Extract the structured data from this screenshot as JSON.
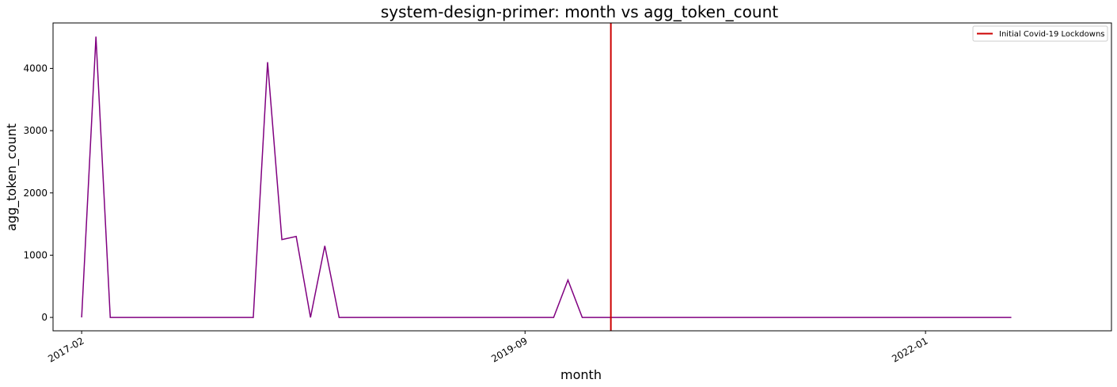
{
  "chart_data": {
    "type": "line",
    "title": "system-design-primer: month vs agg_token_count",
    "xlabel": "month",
    "ylabel": "agg_token_count",
    "x_ticks": [
      "2017-02",
      "2019-09",
      "2022-01"
    ],
    "y_ticks": [
      0,
      1000,
      2000,
      3000,
      4000
    ],
    "ylim": [
      -215,
      4730
    ],
    "xlim": [
      "2016-12",
      "2023-02"
    ],
    "grid": false,
    "legend_position": "top-right",
    "colors": {
      "series": "#800080",
      "marker_line": "#cc0000"
    },
    "series": [
      {
        "x": [
          "2017-02",
          "2017-03",
          "2017-04",
          "2017-05",
          "2017-06",
          "2017-07",
          "2017-08",
          "2017-09",
          "2017-10",
          "2017-11",
          "2017-12",
          "2018-01",
          "2018-02",
          "2018-03",
          "2018-04",
          "2018-05",
          "2018-06",
          "2018-07",
          "2018-08",
          "2018-09",
          "2018-10",
          "2018-11",
          "2018-12",
          "2019-01",
          "2019-02",
          "2019-03",
          "2019-04",
          "2019-05",
          "2019-06",
          "2019-07",
          "2019-08",
          "2019-09",
          "2019-10",
          "2019-11",
          "2019-12",
          "2020-01",
          "2020-02",
          "2020-03",
          "2020-04",
          "2020-05",
          "2020-06",
          "2020-07",
          "2020-08",
          "2020-09",
          "2020-10",
          "2020-11",
          "2020-12",
          "2021-01",
          "2021-02",
          "2021-03",
          "2021-04",
          "2021-05",
          "2021-06",
          "2021-07",
          "2021-08",
          "2021-09",
          "2021-10",
          "2021-11",
          "2021-12",
          "2022-01",
          "2022-02",
          "2022-03",
          "2022-04",
          "2022-05",
          "2022-06",
          "2022-07"
        ],
        "values": [
          0,
          4510,
          0,
          0,
          0,
          0,
          0,
          0,
          0,
          0,
          0,
          0,
          0,
          4100,
          1250,
          1300,
          0,
          1150,
          0,
          0,
          0,
          0,
          0,
          0,
          0,
          0,
          0,
          0,
          0,
          0,
          0,
          0,
          0,
          0,
          600,
          0,
          0,
          0,
          0,
          0,
          0,
          0,
          0,
          0,
          0,
          0,
          0,
          0,
          0,
          0,
          0,
          0,
          0,
          0,
          0,
          0,
          0,
          0,
          0,
          0,
          0,
          0,
          0,
          0,
          0,
          0
        ]
      }
    ],
    "vline": {
      "x": "2020-03",
      "label": "Initial Covid-19 Lockdowns"
    }
  }
}
